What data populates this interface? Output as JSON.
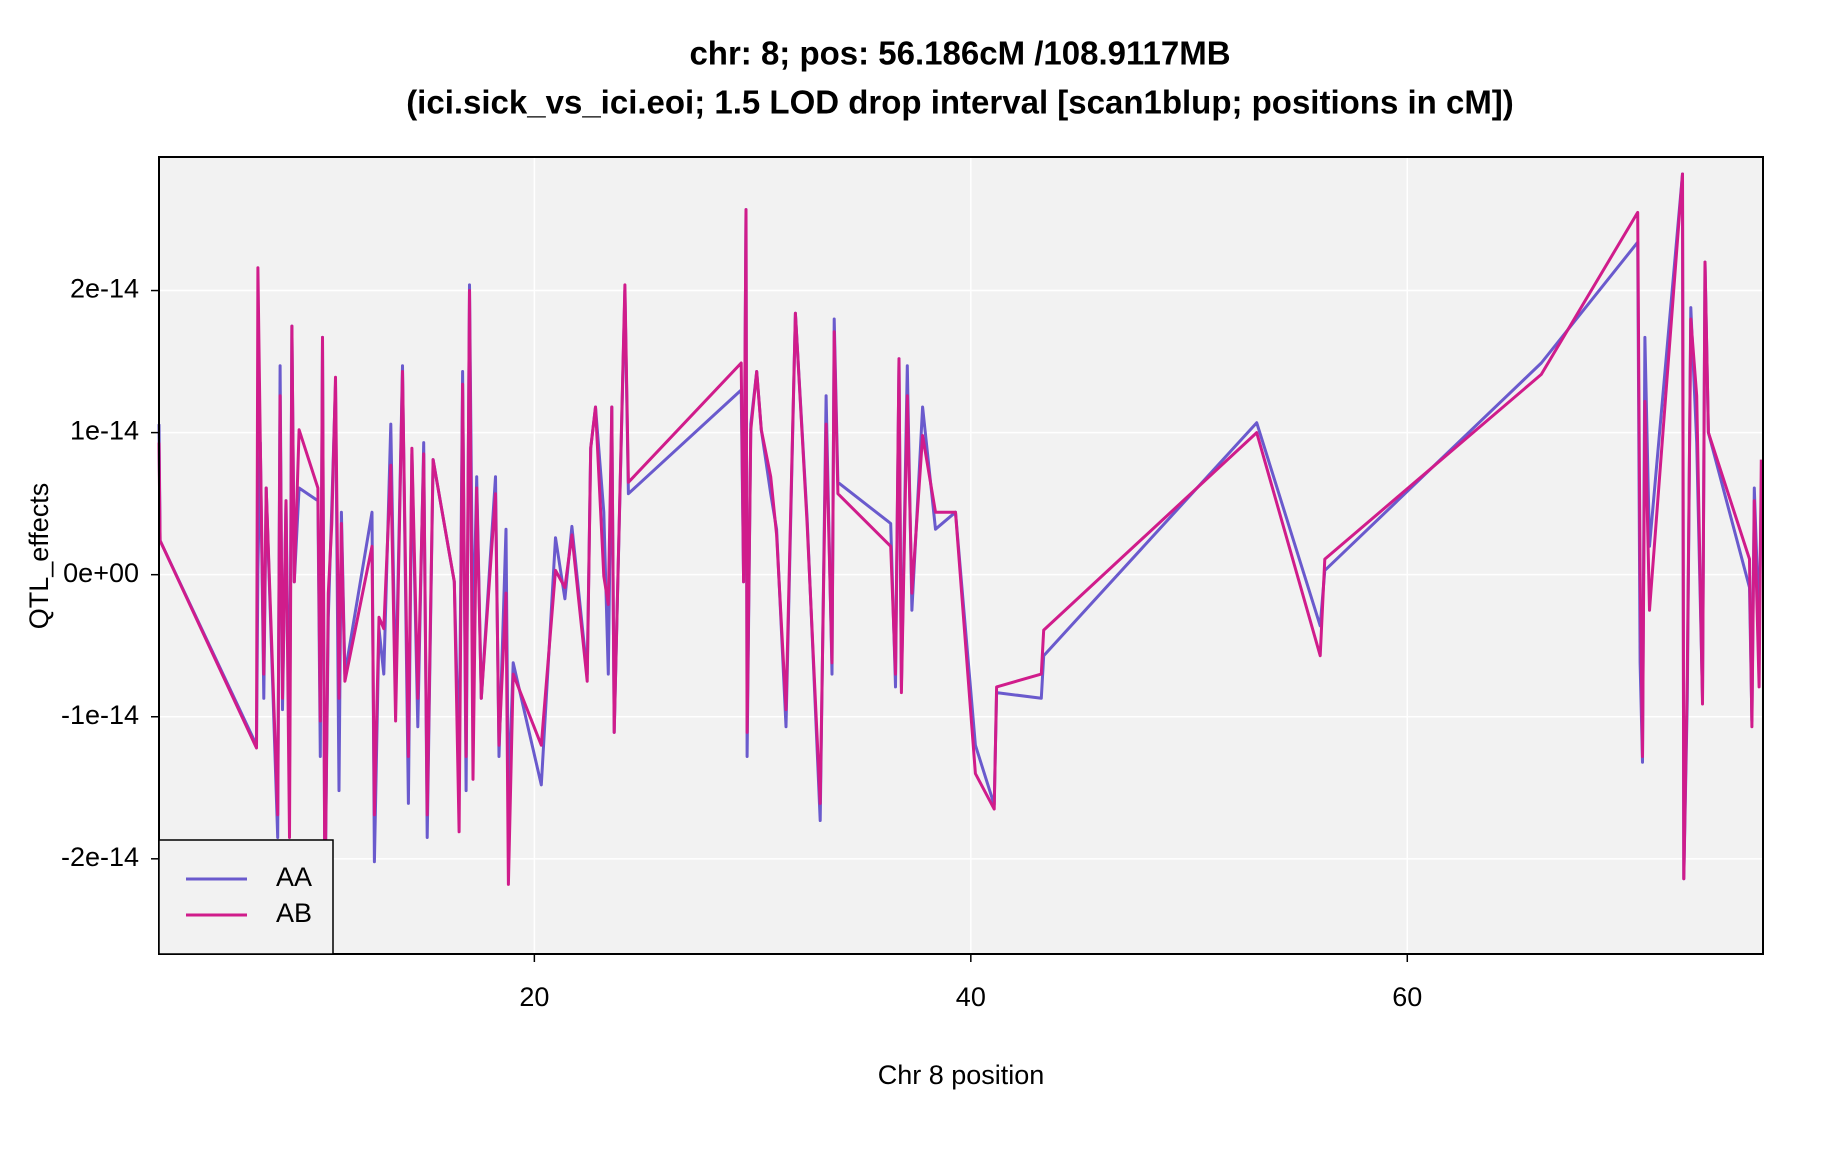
{
  "chart_data": {
    "type": "line",
    "title": [
      "chr: 8; pos: 56.186cM /108.9117MB",
      "(ici.sick_vs_ici.eoi; 1.5 LOD drop interval [scan1blup; positions in cM])"
    ],
    "xlabel": "Chr 8 position",
    "ylabel": "QTL_effects",
    "xlim": [
      2.8,
      76.3
    ],
    "xticks": [
      20,
      40,
      60
    ],
    "ylim": [
      -2.67e-14,
      2.94e-14
    ],
    "yticks": [
      -2e-14,
      -1e-14,
      {
        "value": 0,
        "label": "0e+00"
      },
      1e-14,
      2e-14
    ],
    "grid": true,
    "legend": "bottomleft",
    "x": [
      2.8,
      2.85,
      7.27,
      7.33,
      7.44,
      7.6,
      7.71,
      8.24,
      8.35,
      8.46,
      8.62,
      8.78,
      8.89,
      9.0,
      9.22,
      10.08,
      10.19,
      10.29,
      10.4,
      10.56,
      10.72,
      10.89,
      11.05,
      11.16,
      11.32,
      12.56,
      12.67,
      12.88,
      13.1,
      13.42,
      13.64,
      13.96,
      14.23,
      14.39,
      14.66,
      14.93,
      15.09,
      15.36,
      16.33,
      16.55,
      16.71,
      16.87,
      17.03,
      17.19,
      17.36,
      17.57,
      18.22,
      18.38,
      18.7,
      18.81,
      19.03,
      20.32,
      20.97,
      21.4,
      21.72,
      22.42,
      22.58,
      22.8,
      23.18,
      23.39,
      23.55,
      23.66,
      24.15,
      24.31,
      29.48,
      29.59,
      29.7,
      29.75,
      29.92,
      30.19,
      30.4,
      30.83,
      31.1,
      31.53,
      31.96,
      32.5,
      33.1,
      33.37,
      33.64,
      33.74,
      33.91,
      36.33,
      36.55,
      36.71,
      36.82,
      37.09,
      37.3,
      37.79,
      38.38,
      39.3,
      40.21,
      41.07,
      41.18,
      43.23,
      43.34,
      53.1,
      56.01,
      56.22,
      66.14,
      70.56,
      70.67,
      70.78,
      70.89,
      71.1,
      72.61,
      72.67,
      72.83,
      72.99,
      73.26,
      73.53,
      73.64,
      73.8,
      75.68,
      75.79,
      75.9,
      76.12,
      76.22
    ],
    "series": [
      {
        "name": "AA",
        "color": "#6a5acd",
        "values": [
          1.06e-14,
          2.4e-15,
          -1.2e-14,
          3e-16,
          9.3e-15,
          -8.7e-15,
          6.1e-15,
          -1.85e-14,
          1.47e-14,
          -9.5e-15,
          5.2e-15,
          -1.36e-14,
          1.75e-14,
          -5e-16,
          6.1e-15,
          5.2e-15,
          -1.28e-14,
          1.67e-14,
          -2.34e-14,
          -3e-15,
          4.8e-15,
          1.34e-14,
          -1.52e-14,
          4.4e-15,
          -7e-15,
          4.4e-15,
          -2.02e-14,
          -3.8e-15,
          -7e-15,
          1.06e-14,
          -8.7e-15,
          1.47e-14,
          -1.61e-14,
          8.5e-15,
          -1.07e-14,
          9.3e-15,
          -1.85e-14,
          8.1e-15,
          -5e-16,
          -1.36e-14,
          1.43e-14,
          -1.52e-14,
          2.04e-14,
          -5.4e-15,
          6.9e-15,
          -8.7e-15,
          6.9e-15,
          -1.28e-14,
          3.2e-15,
          -1.61e-14,
          -6.2e-15,
          -1.48e-14,
          2.6e-15,
          -1.7e-15,
          3.4e-15,
          -7e-15,
          8.9e-15,
          1.18e-14,
          4.4e-15,
          -7e-15,
          1.18e-14,
          -1.11e-14,
          2e-14,
          5.7e-15,
          1.3e-14,
          -5e-16,
          2.57e-14,
          -1.28e-14,
          1.06e-14,
          1.43e-14,
          1.02e-14,
          5.7e-15,
          3.2e-15,
          -1.07e-14,
          1.84e-14,
          4e-15,
          -1.73e-14,
          1.26e-14,
          -7e-15,
          1.8e-14,
          6.5e-15,
          3.6e-15,
          -7.9e-15,
          1.52e-14,
          -7.9e-15,
          1.47e-14,
          -2.5e-15,
          1.18e-14,
          3.2e-15,
          4.4e-15,
          -1.2e-14,
          -1.62e-14,
          -8.3e-15,
          -8.7e-15,
          -5.7e-15,
          1.07e-14,
          -3.6e-15,
          3e-16,
          1.49e-14,
          2.34e-14,
          -6.2e-15,
          -1.32e-14,
          1.67e-14,
          2e-15,
          2.82e-14,
          -2.14e-14,
          -8.7e-15,
          1.88e-14,
          9.3e-15,
          -8.7e-15,
          2.2e-14,
          1e-14,
          -9e-16,
          -1.03e-14,
          6.1e-15,
          -3.8e-15,
          6.1e-15
        ]
      },
      {
        "name": "AB",
        "color": "#d01c8b",
        "values": [
          9.3e-15,
          2.4e-15,
          -1.22e-14,
          2.16e-14,
          9.3e-15,
          -7e-15,
          6.1e-15,
          -1.69e-14,
          1.26e-14,
          -8.7e-15,
          5.2e-15,
          -1.85e-14,
          1.75e-14,
          -5e-16,
          1.02e-14,
          6.1e-15,
          -1.03e-14,
          1.67e-14,
          -2.34e-14,
          -1.3e-15,
          3.6e-15,
          1.39e-14,
          -8.7e-15,
          3.6e-15,
          -7.5e-15,
          2e-15,
          -1.69e-14,
          -3e-15,
          -3.8e-15,
          7.7e-15,
          -1.03e-14,
          1.43e-14,
          -1.28e-14,
          8.9e-15,
          -8.7e-15,
          8.5e-15,
          -1.69e-14,
          8.1e-15,
          -5e-16,
          -1.81e-14,
          1.34e-14,
          -1.28e-14,
          2e-14,
          -1.44e-14,
          6.1e-15,
          -8.7e-15,
          5.7e-15,
          -1.2e-14,
          -1.3e-15,
          -2.18e-14,
          -7e-15,
          -1.2e-14,
          3e-16,
          -9e-16,
          2.8e-15,
          -7.5e-15,
          8.9e-15,
          1.18e-14,
          -1e-16,
          -2.1e-15,
          1.18e-14,
          -1.11e-14,
          2.04e-14,
          6.5e-15,
          1.49e-14,
          -5e-16,
          2.57e-14,
          -1.11e-14,
          1.02e-14,
          1.43e-14,
          1.02e-14,
          6.9e-15,
          2.8e-15,
          -9.5e-15,
          1.84e-14,
          3.6e-15,
          -1.61e-14,
          1.06e-14,
          -6.2e-15,
          1.71e-14,
          5.7e-15,
          2e-15,
          -7e-15,
          1.52e-14,
          -8.3e-15,
          1.26e-14,
          -1.3e-15,
          9.8e-15,
          4.4e-15,
          4.4e-15,
          -1.4e-14,
          -1.65e-14,
          -7.9e-15,
          -7e-15,
          -3.9e-15,
          1e-14,
          -5.7e-15,
          1.1e-15,
          1.41e-14,
          2.55e-14,
          3e-16,
          -1.28e-14,
          1.22e-14,
          -2.5e-15,
          2.82e-14,
          -2.14e-14,
          -7e-15,
          1.8e-14,
          1.26e-14,
          -9.1e-15,
          2.2e-14,
          1e-14,
          1.1e-15,
          -1.07e-14,
          5.2e-15,
          -7.9e-15,
          8.1e-15
        ]
      }
    ]
  }
}
